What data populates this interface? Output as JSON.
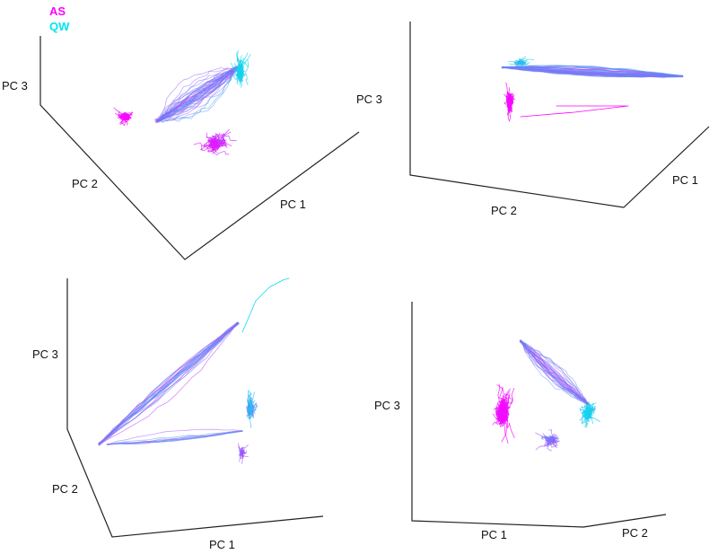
{
  "colors": {
    "as": "#ff00ff",
    "qw": "#00e5ee",
    "axis": "#222222",
    "background": "#ffffff"
  },
  "legend": {
    "position": "top-left",
    "entries": [
      {
        "label": "AS",
        "color": "#ff00ff"
      },
      {
        "label": "QW",
        "color": "#00e5ee"
      }
    ]
  },
  "chart_data": [
    {
      "type": "line",
      "view": "top-left",
      "style": "3d-trajectory",
      "axes": {
        "x": "PC 1",
        "y": "PC 2",
        "z": "PC 3"
      },
      "series": [
        {
          "name": "AS"
        },
        {
          "name": "QW"
        }
      ],
      "grid": false
    },
    {
      "type": "line",
      "view": "top-right",
      "style": "3d-trajectory",
      "axes": {
        "x": "PC 1",
        "y": "PC 2",
        "z": "PC 3"
      },
      "series": [
        {
          "name": "AS"
        },
        {
          "name": "QW"
        }
      ],
      "grid": false
    },
    {
      "type": "line",
      "view": "bottom-left",
      "style": "3d-trajectory",
      "axes": {
        "x": "PC 1",
        "y": "PC 2",
        "z": "PC 3"
      },
      "series": [
        {
          "name": "AS"
        },
        {
          "name": "QW"
        }
      ],
      "grid": false
    },
    {
      "type": "line",
      "view": "bottom-right",
      "style": "3d-trajectory",
      "axes": {
        "x": "PC 1",
        "y": "PC 2",
        "z": "PC 3"
      },
      "series": [
        {
          "name": "AS"
        },
        {
          "name": "QW"
        }
      ],
      "grid": false
    }
  ]
}
